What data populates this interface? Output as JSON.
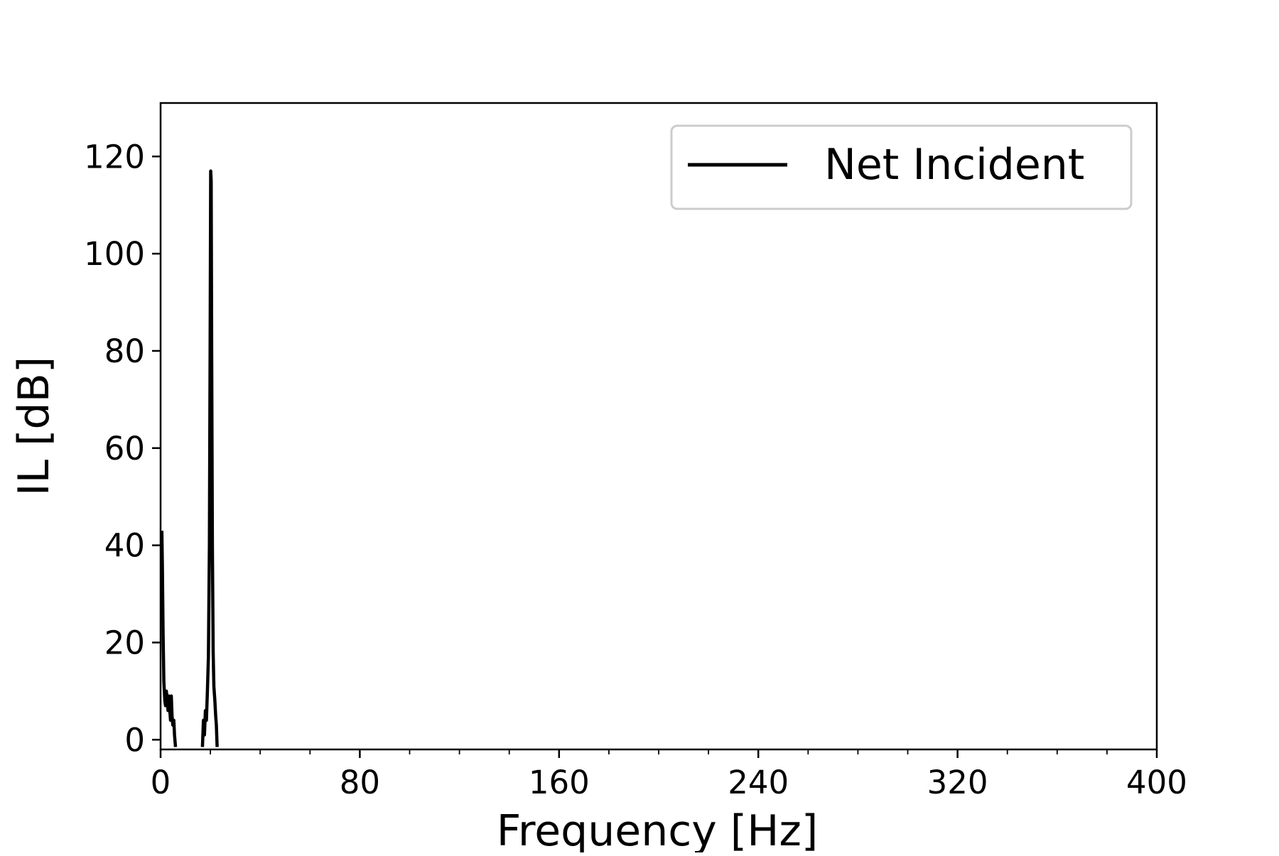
{
  "chart_data": {
    "type": "line",
    "title": "",
    "xlabel": "Frequency [Hz]",
    "ylabel": "IL [dB]",
    "xlim": [
      0,
      400
    ],
    "ylim": [
      -2,
      131
    ],
    "x_ticks": [
      0,
      80,
      160,
      240,
      320,
      400
    ],
    "x_minor_ticks": [
      20,
      40,
      60,
      100,
      120,
      140,
      180,
      200,
      220,
      260,
      280,
      300,
      340,
      360,
      380
    ],
    "y_ticks": [
      0,
      20,
      40,
      60,
      80,
      100,
      120
    ],
    "grid": false,
    "legend_position": "top-right",
    "series": [
      {
        "name": "Net Incident",
        "color": "#000000",
        "segments": [
          [
            [
              0.5,
              43
            ],
            [
              0.7,
              36
            ],
            [
              1.0,
              22
            ],
            [
              1.3,
              12
            ],
            [
              1.7,
              8
            ],
            [
              2.0,
              7
            ],
            [
              2.3,
              10
            ],
            [
              2.7,
              8
            ],
            [
              3.0,
              6
            ],
            [
              3.3,
              9
            ],
            [
              3.7,
              6
            ],
            [
              4.0,
              4
            ],
            [
              4.3,
              9
            ],
            [
              4.6,
              5
            ],
            [
              4.9,
              3
            ],
            [
              5.3,
              4
            ],
            [
              5.6,
              1
            ],
            [
              6.0,
              -1.5
            ]
          ],
          [
            [
              16.8,
              -1.5
            ],
            [
              17.2,
              4
            ],
            [
              17.6,
              1
            ],
            [
              18.0,
              6
            ],
            [
              18.4,
              4
            ],
            [
              18.8,
              10
            ],
            [
              19.2,
              17
            ],
            [
              19.6,
              40
            ],
            [
              19.9,
              80
            ],
            [
              20.1,
              117
            ],
            [
              20.3,
              115
            ],
            [
              20.5,
              80
            ],
            [
              20.8,
              40
            ],
            [
              21.1,
              18
            ],
            [
              21.4,
              11
            ],
            [
              21.8,
              8
            ],
            [
              22.1,
              5
            ],
            [
              22.4,
              3
            ],
            [
              22.7,
              -1.5
            ]
          ]
        ]
      }
    ]
  }
}
